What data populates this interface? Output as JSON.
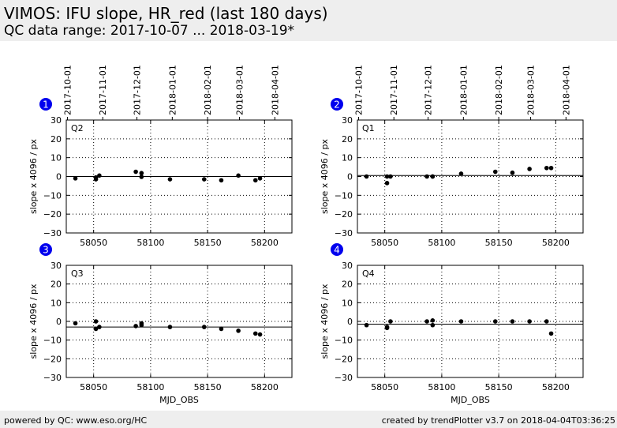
{
  "header": {
    "title": "VIMOS: IFU slope, HR_red (last 180 days)",
    "subtitle": "QC data range: 2017-10-07 ... 2018-03-19*"
  },
  "footer": {
    "left": "powered by QC: www.eso.org/HC",
    "right": "created by trendPlotter v3.7 on 2018-04-04T03:36:25"
  },
  "colors": {
    "marker": "#000000",
    "badge": "#0000ee",
    "grid": "#000000",
    "background": "#ffffff",
    "band": "#eeeeee"
  },
  "chart_data": [
    {
      "type": "scatter",
      "badge": "1",
      "label": "Q2",
      "ylabel": "slope x 4096 / px",
      "xlabel": "",
      "xlim": [
        58026,
        58224
      ],
      "ylim": [
        -30,
        30
      ],
      "xticks": [
        58050,
        58100,
        58150,
        58200
      ],
      "yticks": [
        -30,
        -20,
        -10,
        0,
        10,
        20,
        30
      ],
      "date_ticks": [
        {
          "x": 58027,
          "label": "2017-10-01"
        },
        {
          "x": 58058,
          "label": "2017-11-01"
        },
        {
          "x": 58088,
          "label": "2017-12-01"
        },
        {
          "x": 58119,
          "label": "2018-01-01"
        },
        {
          "x": 58150,
          "label": "2018-02-01"
        },
        {
          "x": 58178,
          "label": "2018-03-01"
        },
        {
          "x": 58209,
          "label": "2018-04-01"
        }
      ],
      "ref_line": 0,
      "x": [
        58034,
        58052,
        58052,
        58055,
        58087,
        58092,
        58092,
        58117,
        58147,
        58162,
        58177,
        58192,
        58196
      ],
      "y": [
        -1.0,
        -0.5,
        -1.5,
        0.5,
        2.5,
        1.8,
        -0.2,
        -1.5,
        -1.5,
        -2.0,
        0.5,
        -2.0,
        -1.0
      ]
    },
    {
      "type": "scatter",
      "badge": "2",
      "label": "Q1",
      "ylabel": "slope x 4096 / px",
      "xlabel": "",
      "xlim": [
        58026,
        58224
      ],
      "ylim": [
        -30,
        30
      ],
      "xticks": [
        58050,
        58100,
        58150,
        58200
      ],
      "yticks": [
        -30,
        -20,
        -10,
        0,
        10,
        20,
        30
      ],
      "date_ticks": [
        {
          "x": 58027,
          "label": "2017-10-01"
        },
        {
          "x": 58058,
          "label": "2017-11-01"
        },
        {
          "x": 58088,
          "label": "2017-12-01"
        },
        {
          "x": 58119,
          "label": "2018-01-01"
        },
        {
          "x": 58150,
          "label": "2018-02-01"
        },
        {
          "x": 58178,
          "label": "2018-03-01"
        },
        {
          "x": 58209,
          "label": "2018-04-01"
        }
      ],
      "ref_line": 0.5,
      "x": [
        58034,
        58052,
        58052,
        58055,
        58087,
        58092,
        58092,
        58117,
        58147,
        58162,
        58177,
        58192,
        58196
      ],
      "y": [
        0.0,
        0.0,
        -3.5,
        0.0,
        0.0,
        0.0,
        0.0,
        1.5,
        2.5,
        2.0,
        4.0,
        4.5,
        4.5
      ]
    },
    {
      "type": "scatter",
      "badge": "3",
      "label": "Q3",
      "ylabel": "slope x 4096 / px",
      "xlabel": "MJD_OBS",
      "xlim": [
        58026,
        58224
      ],
      "ylim": [
        -30,
        30
      ],
      "xticks": [
        58050,
        58100,
        58150,
        58200
      ],
      "yticks": [
        -30,
        -20,
        -10,
        0,
        10,
        20,
        30
      ],
      "ref_line": -3,
      "x": [
        58034,
        58052,
        58052,
        58055,
        58087,
        58092,
        58092,
        58117,
        58147,
        58162,
        58177,
        58192,
        58196
      ],
      "y": [
        -1.0,
        0.0,
        -4.0,
        -3.0,
        -2.5,
        -1.0,
        -2.0,
        -3.0,
        -3.0,
        -4.0,
        -5.0,
        -6.5,
        -7.0
      ]
    },
    {
      "type": "scatter",
      "badge": "4",
      "label": "Q4",
      "ylabel": "slope x 4096 / px",
      "xlabel": "MJD_OBS",
      "xlim": [
        58026,
        58224
      ],
      "ylim": [
        -30,
        30
      ],
      "xticks": [
        58050,
        58100,
        58150,
        58200
      ],
      "yticks": [
        -30,
        -20,
        -10,
        0,
        10,
        20,
        30
      ],
      "ref_line": -1.5,
      "x": [
        58034,
        58052,
        58052,
        58055,
        58087,
        58092,
        58092,
        58117,
        58147,
        58162,
        58177,
        58192,
        58196
      ],
      "y": [
        -2.0,
        -3.0,
        -3.5,
        0.0,
        0.0,
        0.5,
        -2.0,
        0.0,
        0.0,
        0.0,
        0.0,
        0.0,
        -6.5
      ]
    }
  ]
}
